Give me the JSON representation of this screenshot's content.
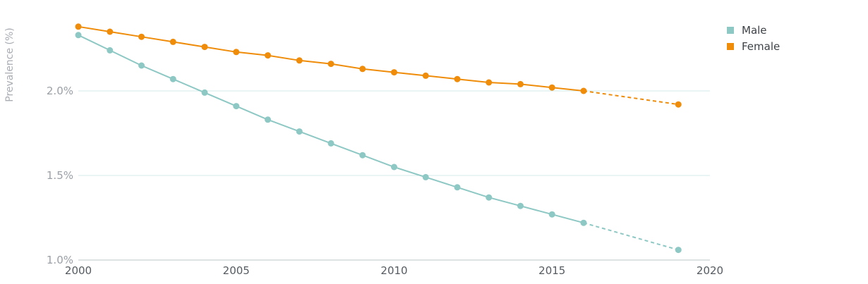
{
  "chart_data": {
    "type": "line",
    "title": "",
    "xlabel": "",
    "ylabel": "Prevalence (%)",
    "xlim": [
      2000,
      2020
    ],
    "ylim": [
      1.0,
      2.4
    ],
    "x_ticks": [
      "2000",
      "2005",
      "2010",
      "2015",
      "2020"
    ],
    "y_ticks": [
      "1.0%",
      "1.5%",
      "2.0%"
    ],
    "grid": true,
    "legend_position": "top-right",
    "series": [
      {
        "name": "Male",
        "color": "#8dc8c4",
        "x": [
          2000,
          2001,
          2002,
          2003,
          2004,
          2005,
          2006,
          2007,
          2008,
          2009,
          2010,
          2011,
          2012,
          2013,
          2014,
          2015,
          2016
        ],
        "values": [
          2.33,
          2.24,
          2.15,
          2.07,
          1.99,
          1.91,
          1.83,
          1.76,
          1.69,
          1.62,
          1.55,
          1.49,
          1.43,
          1.37,
          1.32,
          1.27,
          1.22
        ],
        "projection": {
          "x": [
            2016,
            2019
          ],
          "values": [
            1.22,
            1.06
          ]
        }
      },
      {
        "name": "Female",
        "color": "#ef8c0a",
        "x": [
          2000,
          2001,
          2002,
          2003,
          2004,
          2005,
          2006,
          2007,
          2008,
          2009,
          2010,
          2011,
          2012,
          2013,
          2014,
          2015,
          2016
        ],
        "values": [
          2.38,
          2.35,
          2.32,
          2.29,
          2.26,
          2.23,
          2.21,
          2.18,
          2.16,
          2.13,
          2.11,
          2.09,
          2.07,
          2.05,
          2.04,
          2.02,
          2.0
        ],
        "projection": {
          "x": [
            2016,
            2019
          ],
          "values": [
            2.0,
            1.92
          ]
        }
      }
    ]
  }
}
